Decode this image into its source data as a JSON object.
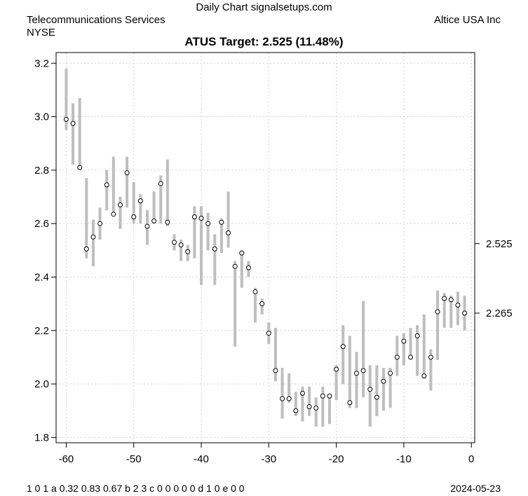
{
  "header": {
    "title": "Daily Chart signalsetups.com",
    "sector": "Telecommunications Services",
    "exchange": "NYSE",
    "company": "Altice USA Inc"
  },
  "footer": {
    "codes": "1 0 1 a 0.32 0.83 0.67 b 2 3 c 0 0 0 0 0 d 1 0 e 0 0",
    "date": "2024-05-23"
  },
  "colors": {
    "range_bar": "#bebebe",
    "grid": "#d3d3d3",
    "point_fill": "#ffffff",
    "point_stroke": "#000000"
  },
  "chart_data": {
    "type": "scatter",
    "title": "ATUS Target: 2.525 (11.48%)",
    "xlabel": "",
    "ylabel": "",
    "xlim": [
      -61.5,
      0.5
    ],
    "ylim": [
      1.78,
      3.24
    ],
    "x_ticks": [
      -60,
      -50,
      -40,
      -30,
      -20,
      -10,
      0
    ],
    "y_ticks": [
      1.8,
      2.0,
      2.2,
      2.4,
      2.6,
      2.8,
      3.0,
      3.2
    ],
    "right_axis_labels": [
      2.525,
      2.265
    ],
    "grid": true,
    "series": [
      {
        "x": [
          -60,
          -59,
          -58,
          -57,
          -56,
          -55,
          -54,
          -53,
          -52,
          -51,
          -50,
          -49,
          -48,
          -47,
          -46,
          -45,
          -44,
          -43,
          -42,
          -41,
          -40,
          -39,
          -38,
          -37,
          -36,
          -35,
          -34,
          -33,
          -32,
          -31,
          -30,
          -29,
          -28,
          -27,
          -26,
          -25,
          -24,
          -23,
          -22,
          -21,
          -20,
          -19,
          -18,
          -17,
          -16,
          -15,
          -14,
          -13,
          -12,
          -11,
          -10,
          -9,
          -8,
          -7,
          -6,
          -5,
          -4,
          -3,
          -2,
          -1
        ],
        "close": [
          2.99,
          2.975,
          2.81,
          2.505,
          2.55,
          2.6,
          2.745,
          2.635,
          2.67,
          2.79,
          2.625,
          2.685,
          2.59,
          2.61,
          2.75,
          2.605,
          2.53,
          2.52,
          2.495,
          2.625,
          2.62,
          2.6,
          2.505,
          2.605,
          2.565,
          2.44,
          2.49,
          2.435,
          2.345,
          2.3,
          2.19,
          2.05,
          1.945,
          1.945,
          1.9,
          1.965,
          1.915,
          1.91,
          1.955,
          1.955,
          2.055,
          2.14,
          1.93,
          2.04,
          2.05,
          1.98,
          1.95,
          2.01,
          2.04,
          2.1,
          2.16,
          2.1,
          2.18,
          2.03,
          2.1,
          2.27,
          2.32,
          2.315,
          2.295,
          2.265
        ],
        "high": [
          3.18,
          3.05,
          3.07,
          2.77,
          2.615,
          2.66,
          2.8,
          2.85,
          2.7,
          2.85,
          2.755,
          2.71,
          2.65,
          2.72,
          2.78,
          2.84,
          2.56,
          2.54,
          2.52,
          2.665,
          2.665,
          2.64,
          2.56,
          2.62,
          2.72,
          2.46,
          2.5,
          2.46,
          2.36,
          2.32,
          2.23,
          2.21,
          2.06,
          2.04,
          1.97,
          1.99,
          1.99,
          1.95,
          1.99,
          1.96,
          2.07,
          2.22,
          2.18,
          2.12,
          2.31,
          2.07,
          2.07,
          2.06,
          2.06,
          2.18,
          2.19,
          2.21,
          2.22,
          2.26,
          2.13,
          2.35,
          2.34,
          2.33,
          2.345,
          2.33
        ],
        "low": [
          2.95,
          2.82,
          2.8,
          2.47,
          2.44,
          2.54,
          2.65,
          2.63,
          2.58,
          2.66,
          2.6,
          2.6,
          2.52,
          2.6,
          2.6,
          2.59,
          2.5,
          2.46,
          2.46,
          2.47,
          2.37,
          2.5,
          2.37,
          2.49,
          2.51,
          2.14,
          2.36,
          2.4,
          2.23,
          2.26,
          2.15,
          2.01,
          1.87,
          1.93,
          1.88,
          1.86,
          1.88,
          1.84,
          1.84,
          1.85,
          1.94,
          2.0,
          1.91,
          1.91,
          1.95,
          1.84,
          1.88,
          1.9,
          1.91,
          2.03,
          2.07,
          2.1,
          2.03,
          2.02,
          1.975,
          2.09,
          2.21,
          2.21,
          2.22,
          2.2
        ]
      }
    ]
  }
}
